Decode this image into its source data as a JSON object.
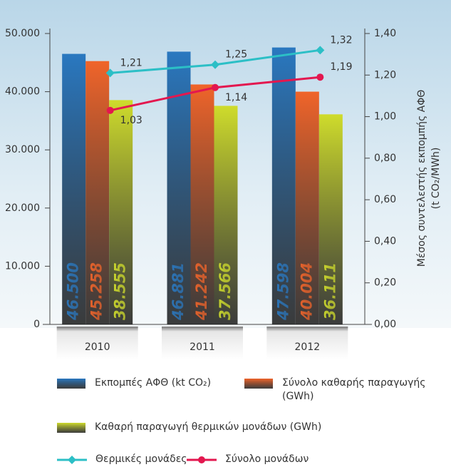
{
  "chart_data": {
    "type": "bar",
    "categories": [
      "2010",
      "2011",
      "2012"
    ],
    "series": [
      {
        "name": "Εκπομπές ΑΦΘ (kt CO₂)",
        "color": "#2a78c0",
        "values": [
          46500,
          46881,
          47598
        ],
        "value_labels": [
          "46.500",
          "46.881",
          "47.598"
        ]
      },
      {
        "name": "Σύνολο καθαρής παραγωγής (GWh)",
        "color": "#f0642a",
        "values": [
          45258,
          41242,
          40004
        ],
        "value_labels": [
          "45.258",
          "41.242",
          "40.004"
        ]
      },
      {
        "name": "Καθαρή παραγωγή θερμικών μονάδων (GWh)",
        "color": "#cfdc2c",
        "values": [
          38555,
          37566,
          36111
        ],
        "value_labels": [
          "38.555",
          "37.566",
          "36.111"
        ]
      },
      {
        "name": "Θερμικές μονάδες",
        "type": "line",
        "axis": "y2",
        "marker": "diamond",
        "color": "#2cbfc6",
        "values": [
          1.21,
          1.25,
          1.32
        ],
        "value_labels": [
          "1,21",
          "1,25",
          "1,32"
        ]
      },
      {
        "name": "Σύνολο μονάδων",
        "type": "line",
        "axis": "y2",
        "marker": "circle",
        "color": "#e3174f",
        "values": [
          1.03,
          1.14,
          1.19
        ],
        "value_labels": [
          "1,03",
          "1,14",
          "1,19"
        ]
      }
    ],
    "y2label": [
      "Μέσος συντελεστής εκπομπής ΑΦΘ",
      "(t CO₂/MWh)"
    ],
    "ylim": [
      0,
      50000
    ],
    "yticks": [
      0,
      {
        "value": 10000,
        "label": "10.000"
      },
      {
        "value": 20000,
        "label": "20.000"
      },
      {
        "value": 30000,
        "label": "30.000"
      },
      {
        "value": 40000,
        "label": "40.000"
      },
      {
        "value": 50000,
        "label": "50.000"
      }
    ],
    "y2lim": [
      0,
      1.4
    ],
    "y2ticks": [
      {
        "value": 0,
        "label": "0,00"
      },
      {
        "value": 0.2,
        "label": "0,20"
      },
      {
        "value": 0.4,
        "label": "0,40"
      },
      {
        "value": 0.6,
        "label": "0,60"
      },
      {
        "value": 0.8,
        "label": "0,80"
      },
      {
        "value": 1.0,
        "label": "1,00"
      },
      {
        "value": 1.2,
        "label": "1,20"
      },
      {
        "value": 1.4,
        "label": "1,40"
      }
    ]
  }
}
